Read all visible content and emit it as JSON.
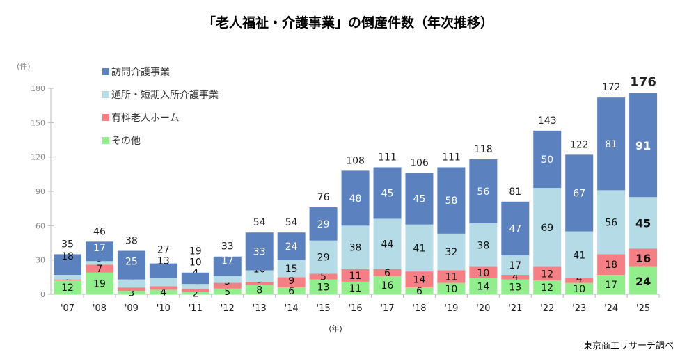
{
  "title": "「老人福祉・介護事業」の倒産件数（年次推移）",
  "source": "東京商工リサーチ調べ",
  "chart_data": {
    "type": "bar",
    "stacked": true,
    "title": "「老人福祉・介護事業」の倒産件数（年次推移）",
    "ylabel": "(件)",
    "xlabel": "(年)",
    "ylim": [
      0,
      180
    ],
    "yticks": [
      0,
      30,
      60,
      90,
      120,
      150,
      180
    ],
    "grid": false,
    "legend": "top-left",
    "categories": [
      "'07",
      "'08",
      "'09",
      "'10",
      "'11",
      "'12",
      "'13",
      "'14",
      "'15",
      "'16",
      "'17",
      "'18",
      "'19",
      "'20",
      "'21",
      "'22",
      "'23",
      "'24",
      "'25"
    ],
    "series": [
      {
        "name": "その他",
        "color": "#92ee8c",
        "values": [
          12,
          19,
          3,
          4,
          2,
          5,
          8,
          6,
          13,
          11,
          16,
          6,
          10,
          14,
          13,
          12,
          10,
          17,
          24
        ]
      },
      {
        "name": "有料老人ホーム",
        "color": "#f47f85",
        "values": [
          1,
          7,
          3,
          3,
          3,
          5,
          3,
          9,
          5,
          11,
          6,
          14,
          11,
          10,
          4,
          12,
          4,
          18,
          16
        ]
      },
      {
        "name": "通所・短期入所介護事業",
        "color": "#b5dce6",
        "values": [
          4,
          3,
          7,
          7,
          4,
          6,
          10,
          15,
          29,
          38,
          44,
          41,
          32,
          38,
          17,
          69,
          41,
          56,
          45
        ]
      },
      {
        "name": "訪問介護事業",
        "color": "#5b82bf",
        "values": [
          18,
          17,
          25,
          13,
          10,
          17,
          33,
          24,
          29,
          48,
          45,
          45,
          58,
          56,
          47,
          50,
          67,
          81,
          91
        ]
      }
    ],
    "totals": [
      35,
      46,
      38,
      27,
      19,
      33,
      54,
      54,
      76,
      108,
      111,
      106,
      111,
      118,
      81,
      143,
      122,
      172,
      176
    ],
    "highlight_last": true
  }
}
